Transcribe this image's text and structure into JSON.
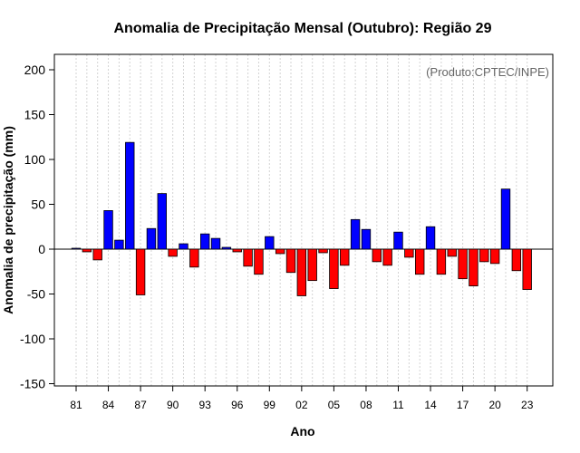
{
  "chart_data": {
    "type": "bar",
    "title": "Anomalia de Precipitação Mensal (Outubro): Região 29",
    "xlabel": "Ano",
    "ylabel": "Anomalia de precipitação (mm)",
    "credit": "(Produto:CPTEC/INPE)",
    "ylim": [
      -155,
      220
    ],
    "yticks": [
      -150,
      -100,
      -50,
      0,
      50,
      100,
      150,
      200
    ],
    "grid": "vertical-dotted",
    "positive_color": "#0000ff",
    "negative_color": "#ff0000",
    "x_tick_labels": [
      "81",
      "84",
      "87",
      "90",
      "93",
      "96",
      "99",
      "02",
      "05",
      "08",
      "11",
      "14",
      "17",
      "20",
      "23"
    ],
    "x_tick_years": [
      1981,
      1984,
      1987,
      1990,
      1993,
      1996,
      1999,
      2002,
      2005,
      2008,
      2011,
      2014,
      2017,
      2020,
      2023
    ],
    "years": [
      1981,
      1982,
      1983,
      1984,
      1985,
      1986,
      1987,
      1988,
      1989,
      1990,
      1991,
      1992,
      1993,
      1994,
      1995,
      1996,
      1997,
      1998,
      1999,
      2000,
      2001,
      2002,
      2003,
      2004,
      2005,
      2006,
      2007,
      2008,
      2009,
      2010,
      2011,
      2012,
      2013,
      2014,
      2015,
      2016,
      2017,
      2018,
      2019,
      2020,
      2021,
      2022,
      2023
    ],
    "values": [
      1,
      -3,
      -12,
      43,
      10,
      119,
      -51,
      23,
      62,
      -8,
      6,
      -20,
      17,
      12,
      2,
      -3,
      -19,
      -28,
      14,
      -5,
      -26,
      -52,
      -35,
      -4,
      -44,
      -18,
      33,
      22,
      -14,
      -18,
      19,
      -9,
      -28,
      25,
      -28,
      -8,
      -33,
      -41,
      -14,
      -16,
      67,
      -24,
      -45
    ]
  }
}
